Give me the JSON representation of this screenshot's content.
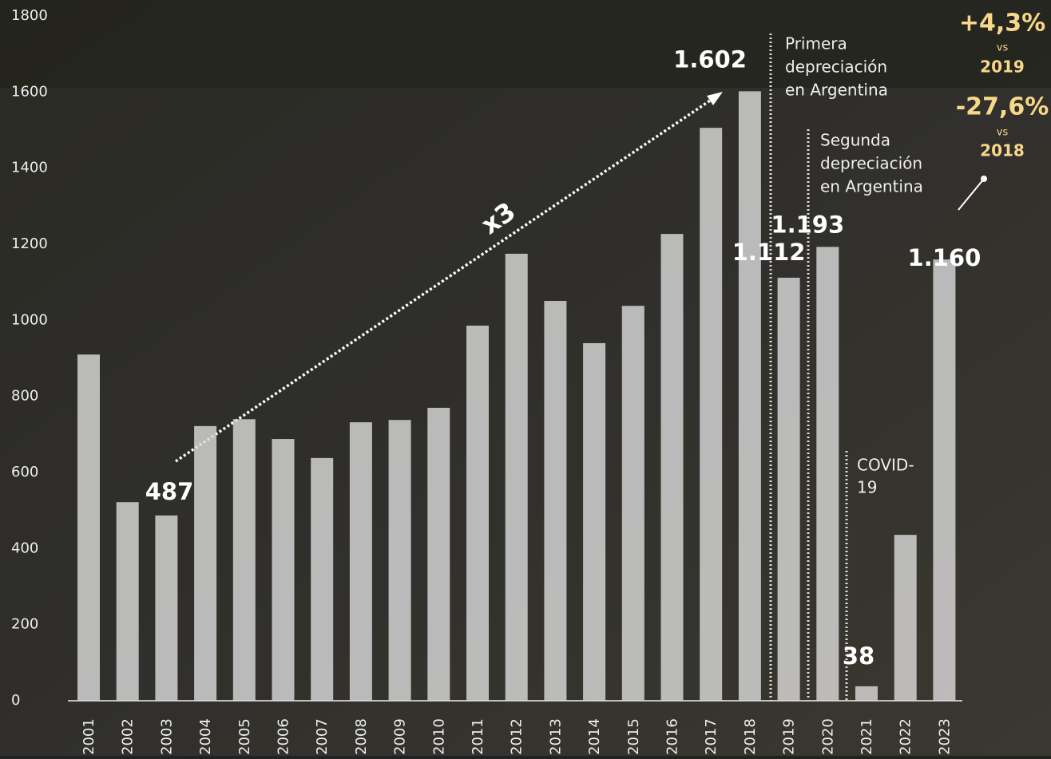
{
  "chart_data": {
    "type": "bar",
    "categories": [
      "2001",
      "2002",
      "2003",
      "2004",
      "2005",
      "2006",
      "2007",
      "2008",
      "2009",
      "2010",
      "2011",
      "2012",
      "2013",
      "2014",
      "2015",
      "2016",
      "2017",
      "2018",
      "2019",
      "2020",
      "2021",
      "2022",
      "2023"
    ],
    "values": [
      910,
      522,
      487,
      722,
      740,
      688,
      638,
      732,
      738,
      770,
      986,
      1175,
      1051,
      940,
      1038,
      1227,
      1506,
      1602,
      1112,
      1193,
      38,
      436,
      1160
    ],
    "value_labels": [
      null,
      null,
      "487",
      null,
      null,
      null,
      null,
      null,
      null,
      null,
      null,
      null,
      null,
      null,
      null,
      null,
      null,
      "1.602",
      "1.112",
      "1.193",
      "38",
      null,
      "1.160"
    ],
    "color": "#d9d9d9",
    "ylim": [
      0,
      1800
    ],
    "yticks": [
      0,
      200,
      400,
      600,
      800,
      1000,
      1200,
      1400,
      1600,
      1800
    ],
    "annotations": [
      {
        "lines": [
          "Primera",
          "depreciación",
          "en Argentina"
        ]
      },
      {
        "lines": [
          "Segunda",
          "depreciación",
          "en Argentina"
        ]
      },
      {
        "lines": [
          "COVID-",
          "19"
        ]
      },
      {
        "lines": [
          "x3"
        ]
      },
      {
        "lines": [
          "+4,3%",
          "vs",
          "2019"
        ]
      },
      {
        "lines": [
          "-27,6%",
          "vs",
          "2018"
        ]
      }
    ]
  }
}
